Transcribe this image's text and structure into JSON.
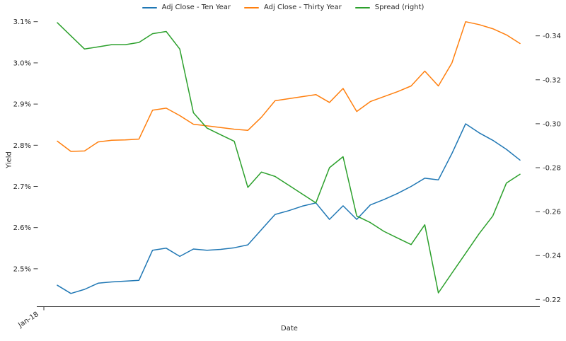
{
  "chart_data": {
    "type": "line",
    "title": "",
    "xlabel": "Date",
    "ylabel": "Yield",
    "grid": false,
    "legend_position": "top center",
    "x_axis": {
      "tick_labels": [
        "Jan-18"
      ]
    },
    "left_axis": {
      "tick_labels": [
        "3.1%",
        "3.0%",
        "2.9%",
        "2.8%",
        "2.7%",
        "2.6%",
        "2.5%"
      ],
      "tick_values": [
        3.1,
        3.0,
        2.9,
        2.8,
        2.7,
        2.6,
        2.5
      ],
      "range": [
        2.43,
        3.15
      ]
    },
    "right_axis": {
      "tick_labels": [
        "-0.34",
        "-0.32",
        "-0.30",
        "-0.28",
        "-0.26",
        "-0.24",
        "-0.22"
      ],
      "tick_values": [
        -0.34,
        -0.32,
        -0.3,
        -0.28,
        -0.26,
        -0.24,
        -0.22
      ],
      "range": [
        -0.355,
        -0.215
      ],
      "inverted": true
    },
    "x": [
      1,
      2,
      3,
      4,
      5,
      6,
      7,
      8,
      9,
      10,
      11,
      12,
      13,
      14,
      15,
      16,
      17,
      18,
      19,
      20,
      21,
      22,
      23,
      24,
      25,
      26,
      27,
      28,
      29,
      30,
      31,
      32,
      33,
      34,
      35
    ],
    "series": [
      {
        "name": "Adj Close - Ten Year",
        "color": "#1f77b4",
        "axis": "left",
        "values": [
          2.46,
          2.44,
          2.45,
          2.465,
          2.468,
          2.47,
          2.472,
          2.545,
          2.55,
          2.53,
          2.548,
          2.545,
          2.547,
          2.551,
          2.558,
          2.595,
          2.632,
          2.641,
          2.652,
          2.66,
          2.62,
          2.653,
          2.62,
          2.655,
          2.668,
          2.683,
          2.7,
          2.72,
          2.716,
          2.78,
          2.852,
          2.83,
          2.812,
          2.79,
          2.764
        ]
      },
      {
        "name": "Adj Close - Thirty Year",
        "color": "#ff7f0e",
        "axis": "left",
        "values": [
          2.81,
          2.785,
          2.786,
          2.808,
          2.812,
          2.813,
          2.815,
          2.885,
          2.89,
          2.872,
          2.851,
          2.847,
          2.843,
          2.839,
          2.836,
          2.868,
          2.908,
          2.913,
          2.918,
          2.923,
          2.904,
          2.938,
          2.882,
          2.906,
          2.918,
          2.93,
          2.944,
          2.98,
          2.944,
          3.0,
          3.1,
          3.093,
          3.083,
          3.068,
          3.047
        ]
      },
      {
        "name": "Spread (right)",
        "color": "#2ca02c",
        "axis": "right",
        "values": [
          -0.346,
          -0.34,
          -0.334,
          -0.335,
          -0.336,
          -0.336,
          -0.337,
          -0.341,
          -0.342,
          -0.334,
          -0.305,
          -0.298,
          -0.295,
          -0.292,
          -0.271,
          -0.278,
          -0.276,
          -0.272,
          -0.268,
          -0.264,
          -0.28,
          -0.285,
          -0.258,
          -0.255,
          -0.251,
          -0.248,
          -0.245,
          -0.254,
          -0.223,
          -0.232,
          -0.241,
          -0.25,
          -0.258,
          -0.273,
          -0.277
        ]
      }
    ]
  }
}
